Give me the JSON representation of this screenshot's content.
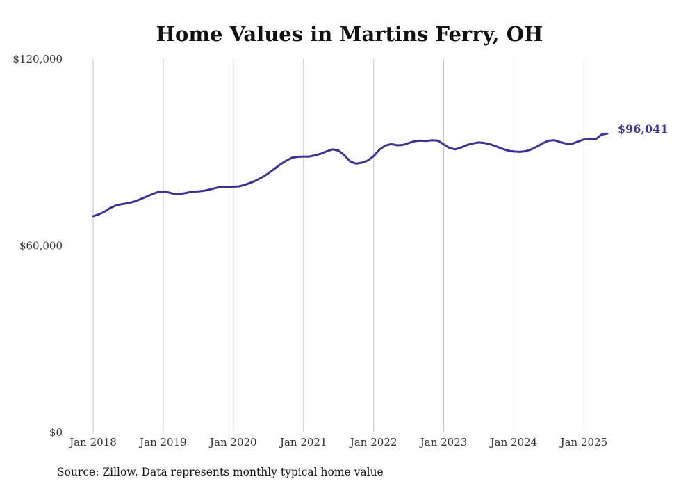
{
  "source_note": "Source: Zillow. Data represents monthly typical home value",
  "colors": {
    "line": "#3b3391",
    "grid": "#c8c8c8",
    "text": "#333333"
  },
  "chart_data": {
    "type": "line",
    "title": "Home Values in Martins Ferry, OH",
    "xlabel": "",
    "ylabel": "",
    "ylim": [
      0,
      120000
    ],
    "xlim": [
      "2018-01",
      "2025-05"
    ],
    "y_ticks": [
      {
        "value": 0,
        "label": "$0"
      },
      {
        "value": 60000,
        "label": "$60,000"
      },
      {
        "value": 120000,
        "label": "$120,000"
      }
    ],
    "x_ticks": [
      {
        "value": "2018-01",
        "label": "Jan 2018"
      },
      {
        "value": "2019-01",
        "label": "Jan 2019"
      },
      {
        "value": "2020-01",
        "label": "Jan 2020"
      },
      {
        "value": "2021-01",
        "label": "Jan 2021"
      },
      {
        "value": "2022-01",
        "label": "Jan 2022"
      },
      {
        "value": "2023-01",
        "label": "Jan 2023"
      },
      {
        "value": "2024-01",
        "label": "Jan 2024"
      },
      {
        "value": "2025-01",
        "label": "Jan 2025"
      }
    ],
    "grid": {
      "vertical": true,
      "horizontal": false
    },
    "end_label": "$96,041",
    "x": [
      "2018-01",
      "2018-02",
      "2018-03",
      "2018-04",
      "2018-05",
      "2018-06",
      "2018-07",
      "2018-08",
      "2018-09",
      "2018-10",
      "2018-11",
      "2018-12",
      "2019-01",
      "2019-02",
      "2019-03",
      "2019-04",
      "2019-05",
      "2019-06",
      "2019-07",
      "2019-08",
      "2019-09",
      "2019-10",
      "2019-11",
      "2019-12",
      "2020-01",
      "2020-02",
      "2020-03",
      "2020-04",
      "2020-05",
      "2020-06",
      "2020-07",
      "2020-08",
      "2020-09",
      "2020-10",
      "2020-11",
      "2020-12",
      "2021-01",
      "2021-02",
      "2021-03",
      "2021-04",
      "2021-05",
      "2021-06",
      "2021-07",
      "2021-08",
      "2021-09",
      "2021-10",
      "2021-11",
      "2021-12",
      "2022-01",
      "2022-02",
      "2022-03",
      "2022-04",
      "2022-05",
      "2022-06",
      "2022-07",
      "2022-08",
      "2022-09",
      "2022-10",
      "2022-11",
      "2022-12",
      "2023-01",
      "2023-02",
      "2023-03",
      "2023-04",
      "2023-05",
      "2023-06",
      "2023-07",
      "2023-08",
      "2023-09",
      "2023-10",
      "2023-11",
      "2023-12",
      "2024-01",
      "2024-02",
      "2024-03",
      "2024-04",
      "2024-05",
      "2024-06",
      "2024-07",
      "2024-08",
      "2024-09",
      "2024-10",
      "2024-11",
      "2024-12",
      "2025-01",
      "2025-02",
      "2025-03",
      "2025-04",
      "2025-05"
    ],
    "series": [
      {
        "values": [
          69500,
          70100,
          71000,
          72200,
          73000,
          73400,
          73700,
          74200,
          74900,
          75700,
          76500,
          77200,
          77400,
          77100,
          76600,
          76700,
          77000,
          77400,
          77500,
          77700,
          78100,
          78600,
          79000,
          79000,
          79000,
          79100,
          79600,
          80300,
          81100,
          82100,
          83300,
          84700,
          86100,
          87300,
          88300,
          88600,
          88700,
          88700,
          89100,
          89600,
          90400,
          91000,
          90600,
          89100,
          87100,
          86400,
          86700,
          87400,
          88800,
          90900,
          92200,
          92700,
          92300,
          92400,
          93000,
          93600,
          93800,
          93700,
          93900,
          93800,
          92600,
          91400,
          91000,
          91600,
          92400,
          92900,
          93200,
          93000,
          92600,
          91900,
          91200,
          90600,
          90300,
          90200,
          90400,
          91000,
          91900,
          93000,
          93800,
          93900,
          93300,
          92800,
          92800,
          93500,
          94200,
          94300,
          94200,
          95700,
          96041
        ]
      }
    ]
  }
}
